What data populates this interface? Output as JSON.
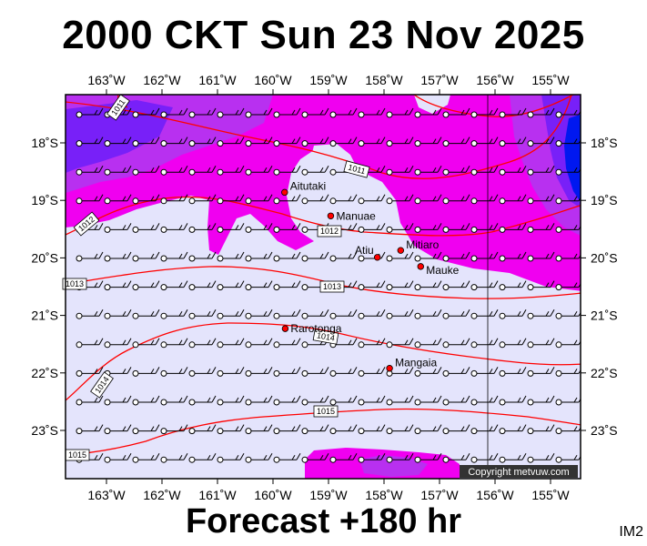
{
  "header": {
    "title": "2000 CKT Sun 23 Nov 2025"
  },
  "footer": {
    "forecast": "Forecast +180 hr",
    "image_code": "IM2"
  },
  "copyright": "Copyright metvuw.com",
  "axes": {
    "lon_labels": [
      "163˚W",
      "162˚W",
      "161˚W",
      "160˚W",
      "159˚W",
      "158˚W",
      "157˚W",
      "156˚W",
      "155˚W"
    ],
    "lon_values": [
      -163,
      -162,
      -161,
      -160,
      -159,
      -158,
      -157,
      -156,
      -155
    ],
    "lat_labels": [
      "18˚S",
      "19˚S",
      "20˚S",
      "21˚S",
      "22˚S",
      "23˚S"
    ],
    "lat_values": [
      -18,
      -19,
      -20,
      -21,
      -22,
      -23
    ]
  },
  "places": [
    {
      "name": "Aitutaki",
      "lon": -159.79,
      "lat": -18.86
    },
    {
      "name": "Manuae",
      "lon": -158.96,
      "lat": -19.27
    },
    {
      "name": "Mitiaro",
      "lon": -157.7,
      "lat": -19.87
    },
    {
      "name": "Atiu",
      "lon": -158.12,
      "lat": -19.99
    },
    {
      "name": "Mauke",
      "lon": -157.34,
      "lat": -20.15
    },
    {
      "name": "Rarotonga",
      "lon": -159.78,
      "lat": -21.23
    },
    {
      "name": "Mangaia",
      "lon": -157.9,
      "lat": -21.92
    }
  ],
  "isobars": [
    {
      "label": "1011",
      "level": 1011
    },
    {
      "label": "1011",
      "level": 1011
    },
    {
      "label": "1012",
      "level": 1012
    },
    {
      "label": "1012",
      "level": 1012
    },
    {
      "label": "1013",
      "level": 1013
    },
    {
      "label": "1013",
      "level": 1013
    },
    {
      "label": "1014",
      "level": 1014
    },
    {
      "label": "1014",
      "level": 1014
    },
    {
      "label": "1015",
      "level": 1015
    },
    {
      "label": "1015",
      "level": 1015
    }
  ],
  "colors": {
    "ocean": "#e4e4fc",
    "rain_light": "#f000f0",
    "rain_moderate": "#b830f0",
    "rain_heavy": "#7820f8",
    "rain_extreme": "#0018f0",
    "isobar": "#ff0000",
    "place_marker": "#ff0000"
  }
}
